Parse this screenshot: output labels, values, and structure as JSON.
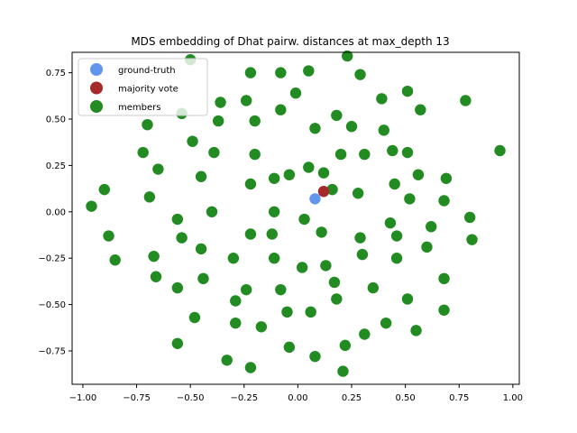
{
  "chart_data": {
    "type": "scatter",
    "title": "MDS embedding of Dhat pairw. distances at max_depth 13",
    "xlabel": "",
    "ylabel": "",
    "xlim": [
      -1.05,
      1.03
    ],
    "ylim": [
      -0.93,
      0.86
    ],
    "xticks": [
      -1.0,
      -0.75,
      -0.5,
      -0.25,
      0.0,
      0.25,
      0.5,
      0.75,
      1.0
    ],
    "xtick_labels": [
      "−1.00",
      "−0.75",
      "−0.50",
      "−0.25",
      "0.00",
      "0.25",
      "0.50",
      "0.75",
      "1.00"
    ],
    "yticks": [
      -0.75,
      -0.5,
      -0.25,
      0.0,
      0.25,
      0.5,
      0.75
    ],
    "ytick_labels": [
      "−0.75",
      "−0.50",
      "−0.25",
      "0.00",
      "0.25",
      "0.50",
      "0.75"
    ],
    "grid": false,
    "legend_position": "top-left",
    "series": [
      {
        "name": "members",
        "color": "#228b22",
        "points": [
          [
            0.23,
            0.84
          ],
          [
            -0.22,
            0.75
          ],
          [
            -0.08,
            0.75
          ],
          [
            0.05,
            0.76
          ],
          [
            0.29,
            0.74
          ],
          [
            -0.5,
            0.82
          ],
          [
            -0.36,
            0.59
          ],
          [
            -0.24,
            0.6
          ],
          [
            -0.08,
            0.55
          ],
          [
            -0.01,
            0.64
          ],
          [
            0.39,
            0.61
          ],
          [
            0.51,
            0.65
          ],
          [
            0.78,
            0.6
          ],
          [
            -0.54,
            0.53
          ],
          [
            -0.37,
            0.49
          ],
          [
            -0.2,
            0.49
          ],
          [
            0.18,
            0.52
          ],
          [
            0.57,
            0.55
          ],
          [
            -0.7,
            0.47
          ],
          [
            0.08,
            0.45
          ],
          [
            0.25,
            0.46
          ],
          [
            0.4,
            0.44
          ],
          [
            -0.49,
            0.38
          ],
          [
            -0.72,
            0.32
          ],
          [
            -0.39,
            0.32
          ],
          [
            -0.2,
            0.31
          ],
          [
            0.2,
            0.31
          ],
          [
            0.31,
            0.31
          ],
          [
            0.44,
            0.33
          ],
          [
            0.51,
            0.32
          ],
          [
            0.94,
            0.33
          ],
          [
            -0.65,
            0.23
          ],
          [
            0.05,
            0.24
          ],
          [
            -0.45,
            0.19
          ],
          [
            0.12,
            0.21
          ],
          [
            -0.04,
            0.2
          ],
          [
            -0.11,
            0.18
          ],
          [
            0.56,
            0.2
          ],
          [
            0.69,
            0.18
          ],
          [
            -0.22,
            0.15
          ],
          [
            0.45,
            0.15
          ],
          [
            -0.9,
            0.12
          ],
          [
            0.16,
            0.12
          ],
          [
            0.28,
            0.1
          ],
          [
            -0.69,
            0.08
          ],
          [
            0.52,
            0.07
          ],
          [
            0.68,
            0.06
          ],
          [
            -0.96,
            0.03
          ],
          [
            -0.4,
            0.0
          ],
          [
            -0.11,
            0.0
          ],
          [
            -0.56,
            -0.04
          ],
          [
            0.03,
            -0.04
          ],
          [
            0.43,
            -0.06
          ],
          [
            0.8,
            -0.03
          ],
          [
            0.62,
            -0.08
          ],
          [
            -0.88,
            -0.13
          ],
          [
            -0.54,
            -0.14
          ],
          [
            -0.22,
            -0.12
          ],
          [
            -0.12,
            -0.12
          ],
          [
            0.11,
            -0.11
          ],
          [
            0.29,
            -0.14
          ],
          [
            0.46,
            -0.13
          ],
          [
            0.81,
            -0.15
          ],
          [
            -0.45,
            -0.2
          ],
          [
            0.6,
            -0.19
          ],
          [
            -0.67,
            -0.24
          ],
          [
            -0.3,
            -0.25
          ],
          [
            -0.11,
            -0.25
          ],
          [
            0.3,
            -0.23
          ],
          [
            -0.85,
            -0.26
          ],
          [
            0.46,
            -0.25
          ],
          [
            0.02,
            -0.3
          ],
          [
            0.13,
            -0.29
          ],
          [
            -0.66,
            -0.35
          ],
          [
            -0.44,
            -0.36
          ],
          [
            0.17,
            -0.38
          ],
          [
            -0.56,
            -0.41
          ],
          [
            -0.24,
            -0.42
          ],
          [
            -0.08,
            -0.42
          ],
          [
            0.35,
            -0.41
          ],
          [
            0.68,
            -0.36
          ],
          [
            -0.29,
            -0.48
          ],
          [
            0.18,
            -0.47
          ],
          [
            0.51,
            -0.47
          ],
          [
            -0.05,
            -0.54
          ],
          [
            0.06,
            -0.54
          ],
          [
            0.68,
            -0.53
          ],
          [
            -0.48,
            -0.57
          ],
          [
            -0.29,
            -0.6
          ],
          [
            -0.17,
            -0.62
          ],
          [
            0.41,
            -0.6
          ],
          [
            0.55,
            -0.64
          ],
          [
            0.31,
            -0.66
          ],
          [
            -0.56,
            -0.71
          ],
          [
            -0.04,
            -0.73
          ],
          [
            0.22,
            -0.72
          ],
          [
            -0.33,
            -0.8
          ],
          [
            0.08,
            -0.78
          ],
          [
            -0.22,
            -0.84
          ],
          [
            0.21,
            -0.86
          ]
        ]
      },
      {
        "name": "ground-truth",
        "color": "#6495ed",
        "points": [
          [
            0.08,
            0.07
          ]
        ]
      },
      {
        "name": "majority vote",
        "color": "#a52a2a",
        "points": [
          [
            0.12,
            0.11
          ]
        ]
      }
    ],
    "legend_order": [
      "ground-truth",
      "majority vote",
      "members"
    ]
  }
}
